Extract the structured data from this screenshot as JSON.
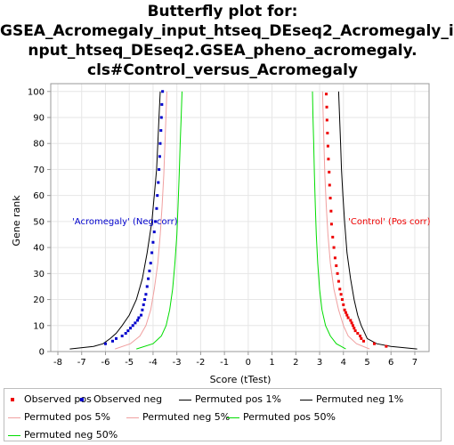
{
  "title_lines": [
    "Butterfly plot for:",
    "GSEA_Acromegaly_input_htseq_DEseq2_Acromegaly_i",
    "nput_htseq_DEseq2.GSEA_pheno_acromegaly.",
    "cls#Control_versus_Acromegaly"
  ],
  "chart_data": {
    "type": "line",
    "title": "Butterfly plot for: GSEA_Acromegaly_input_htseq_DEseq2_Acromegaly_input_htseq_DEseq2.GSEA_pheno_acromegaly.cls#Control_versus_Acromegaly",
    "xlabel": "Score (tTest)",
    "ylabel": "Gene rank",
    "xlim": [
      -8.3,
      7.6
    ],
    "ylim": [
      0,
      103
    ],
    "x_ticks": [
      -8,
      -7,
      -6,
      -5,
      -4,
      -3,
      -2,
      -1,
      0,
      1,
      2,
      3,
      4,
      5,
      6,
      7
    ],
    "y_ticks": [
      0,
      10,
      20,
      30,
      40,
      50,
      60,
      70,
      80,
      90,
      100
    ],
    "grid": true,
    "legend_position": "bottom",
    "annotations": [
      {
        "text": "'Acromegaly' (Neg corr)",
        "color": "#0000cc",
        "x": -7.4,
        "y": 49
      },
      {
        "text": "'Control' (Pos corr)",
        "color": "#ee0000",
        "x": 4.2,
        "y": 49
      }
    ],
    "series": [
      {
        "name": "Observed pos",
        "style": "dots",
        "color": "#ee0000",
        "points": [
          [
            5.8,
            2
          ],
          [
            5.3,
            3
          ],
          [
            4.85,
            4
          ],
          [
            4.75,
            5
          ],
          [
            4.7,
            6
          ],
          [
            4.6,
            7
          ],
          [
            4.5,
            8
          ],
          [
            4.45,
            9
          ],
          [
            4.4,
            10
          ],
          [
            4.35,
            11
          ],
          [
            4.3,
            12
          ],
          [
            4.2,
            13
          ],
          [
            4.15,
            14
          ],
          [
            4.1,
            15
          ],
          [
            4.05,
            16
          ],
          [
            4.0,
            18
          ],
          [
            3.95,
            20
          ],
          [
            3.9,
            22
          ],
          [
            3.85,
            24
          ],
          [
            3.8,
            27
          ],
          [
            3.75,
            30
          ],
          [
            3.7,
            33
          ],
          [
            3.65,
            36
          ],
          [
            3.6,
            40
          ],
          [
            3.55,
            44
          ],
          [
            3.5,
            49
          ],
          [
            3.48,
            54
          ],
          [
            3.45,
            59
          ],
          [
            3.42,
            64
          ],
          [
            3.4,
            69
          ],
          [
            3.37,
            74
          ],
          [
            3.35,
            79
          ],
          [
            3.33,
            84
          ],
          [
            3.31,
            89
          ],
          [
            3.3,
            94
          ],
          [
            3.28,
            99
          ]
        ]
      },
      {
        "name": "Observed neg",
        "style": "dots",
        "color": "#0000cc",
        "points": [
          [
            -6.0,
            3
          ],
          [
            -5.7,
            4
          ],
          [
            -5.55,
            5
          ],
          [
            -5.3,
            6
          ],
          [
            -5.15,
            7
          ],
          [
            -5.05,
            8
          ],
          [
            -4.95,
            9
          ],
          [
            -4.85,
            10
          ],
          [
            -4.75,
            11
          ],
          [
            -4.65,
            12
          ],
          [
            -4.6,
            13
          ],
          [
            -4.5,
            14
          ],
          [
            -4.45,
            16
          ],
          [
            -4.4,
            18
          ],
          [
            -4.35,
            20
          ],
          [
            -4.3,
            22
          ],
          [
            -4.25,
            25
          ],
          [
            -4.2,
            28
          ],
          [
            -4.15,
            31
          ],
          [
            -4.1,
            34
          ],
          [
            -4.05,
            38
          ],
          [
            -4.0,
            42
          ],
          [
            -3.95,
            46
          ],
          [
            -3.9,
            50
          ],
          [
            -3.85,
            55
          ],
          [
            -3.82,
            60
          ],
          [
            -3.78,
            65
          ],
          [
            -3.75,
            70
          ],
          [
            -3.72,
            75
          ],
          [
            -3.7,
            80
          ],
          [
            -3.67,
            85
          ],
          [
            -3.65,
            90
          ],
          [
            -3.63,
            95
          ],
          [
            -3.6,
            100
          ]
        ]
      },
      {
        "name": "Permuted pos 1%",
        "style": "line",
        "color": "#000000",
        "points": [
          [
            7.1,
            1
          ],
          [
            6.0,
            2
          ],
          [
            5.4,
            3
          ],
          [
            5.0,
            5
          ],
          [
            4.85,
            8
          ],
          [
            4.75,
            10
          ],
          [
            4.6,
            14
          ],
          [
            4.45,
            20
          ],
          [
            4.3,
            28
          ],
          [
            4.15,
            38
          ],
          [
            4.05,
            50
          ],
          [
            3.98,
            60
          ],
          [
            3.92,
            70
          ],
          [
            3.88,
            80
          ],
          [
            3.84,
            90
          ],
          [
            3.8,
            100
          ]
        ]
      },
      {
        "name": "Permuted neg 1%",
        "style": "line",
        "color": "#000000",
        "points": [
          [
            -7.5,
            1
          ],
          [
            -6.5,
            2
          ],
          [
            -6.1,
            3
          ],
          [
            -5.8,
            5
          ],
          [
            -5.55,
            7
          ],
          [
            -5.3,
            10
          ],
          [
            -5.0,
            14
          ],
          [
            -4.7,
            20
          ],
          [
            -4.45,
            28
          ],
          [
            -4.25,
            38
          ],
          [
            -4.05,
            50
          ],
          [
            -3.95,
            60
          ],
          [
            -3.85,
            70
          ],
          [
            -3.8,
            80
          ],
          [
            -3.75,
            90
          ],
          [
            -3.7,
            100
          ]
        ]
      },
      {
        "name": "Permuted pos 5%",
        "style": "line",
        "color": "#f0a0a0",
        "points": [
          [
            5.1,
            1
          ],
          [
            4.55,
            3
          ],
          [
            4.2,
            6
          ],
          [
            4.0,
            10
          ],
          [
            3.8,
            16
          ],
          [
            3.6,
            24
          ],
          [
            3.45,
            34
          ],
          [
            3.35,
            45
          ],
          [
            3.28,
            56
          ],
          [
            3.22,
            68
          ],
          [
            3.18,
            80
          ],
          [
            3.15,
            90
          ],
          [
            3.12,
            100
          ]
        ]
      },
      {
        "name": "Permuted neg 5%",
        "style": "line",
        "color": "#f0a0a0",
        "points": [
          [
            -5.6,
            1
          ],
          [
            -4.95,
            3
          ],
          [
            -4.55,
            6
          ],
          [
            -4.3,
            10
          ],
          [
            -4.1,
            16
          ],
          [
            -3.95,
            24
          ],
          [
            -3.8,
            34
          ],
          [
            -3.7,
            45
          ],
          [
            -3.62,
            56
          ],
          [
            -3.55,
            68
          ],
          [
            -3.5,
            80
          ],
          [
            -3.46,
            90
          ],
          [
            -3.42,
            100
          ]
        ]
      },
      {
        "name": "Permuted pos 50%",
        "style": "line",
        "color": "#00dd00",
        "points": [
          [
            4.1,
            1
          ],
          [
            3.7,
            3
          ],
          [
            3.45,
            6
          ],
          [
            3.25,
            10
          ],
          [
            3.1,
            16
          ],
          [
            3.0,
            24
          ],
          [
            2.92,
            34
          ],
          [
            2.86,
            45
          ],
          [
            2.82,
            56
          ],
          [
            2.78,
            68
          ],
          [
            2.75,
            80
          ],
          [
            2.72,
            90
          ],
          [
            2.7,
            100
          ]
        ]
      },
      {
        "name": "Permuted neg 50%",
        "style": "line",
        "color": "#00dd00",
        "points": [
          [
            -4.7,
            1
          ],
          [
            -4.0,
            3
          ],
          [
            -3.65,
            6
          ],
          [
            -3.45,
            10
          ],
          [
            -3.3,
            16
          ],
          [
            -3.18,
            24
          ],
          [
            -3.08,
            34
          ],
          [
            -3.0,
            45
          ],
          [
            -2.95,
            56
          ],
          [
            -2.9,
            68
          ],
          [
            -2.86,
            80
          ],
          [
            -2.82,
            90
          ],
          [
            -2.78,
            100
          ]
        ]
      }
    ]
  }
}
